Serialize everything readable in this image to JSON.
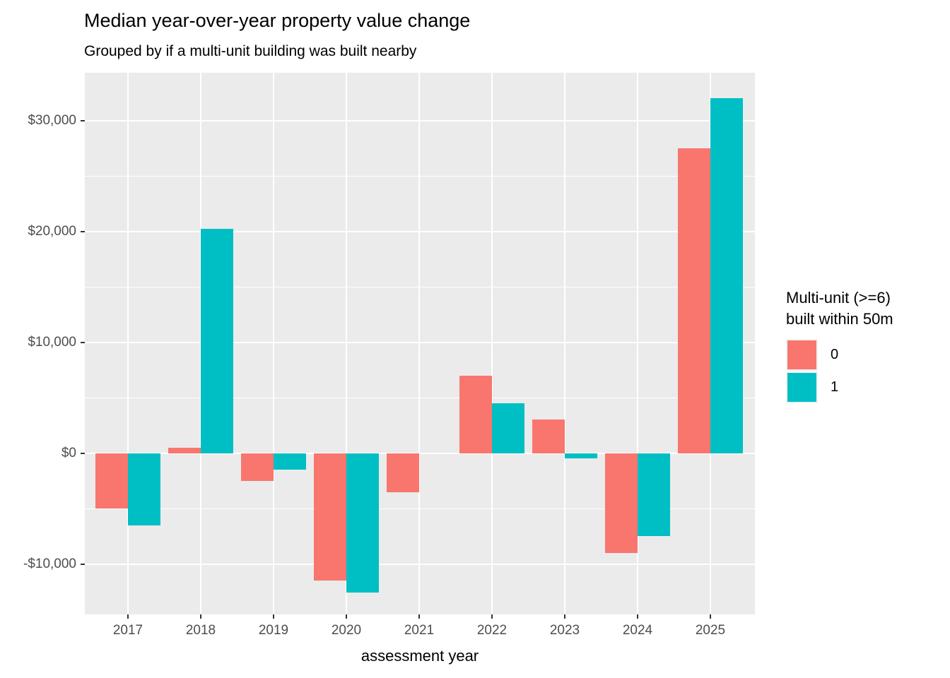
{
  "chart_data": {
    "type": "bar",
    "title": "Median year-over-year property value change",
    "subtitle": "Grouped by if a multi-unit building was built nearby",
    "xlabel": "assessment year",
    "ylabel": "",
    "categories": [
      "2017",
      "2018",
      "2019",
      "2020",
      "2021",
      "2022",
      "2023",
      "2024",
      "2025"
    ],
    "series": [
      {
        "name": "0",
        "color": "#F8766D",
        "values": [
          -5000,
          450,
          -2500,
          -11500,
          -3500,
          7000,
          3000,
          -9000,
          27500
        ]
      },
      {
        "name": "1",
        "color": "#00BFC4",
        "values": [
          -6500,
          20200,
          -1500,
          -12600,
          null,
          4500,
          -500,
          -7500,
          32000
        ]
      }
    ],
    "ylim": [
      -14550,
      34300
    ],
    "yticks_major": [
      -10000,
      0,
      10000,
      20000,
      30000
    ],
    "ytick_labels": [
      "-$10,000",
      "$0",
      "$10,000",
      "$20,000",
      "$30,000"
    ],
    "yticks_minor": [
      -5000,
      5000,
      15000,
      25000
    ],
    "grid": "white major+minor horizontal lines and major vertical lines on gray panel",
    "legend_position": "right",
    "legend": {
      "title_lines": [
        "Multi-unit (>=6)",
        "built within 50m"
      ],
      "entries": [
        {
          "label": "0",
          "color": "#F8766D"
        },
        {
          "label": "1",
          "color": "#00BFC4"
        }
      ]
    },
    "colors": {
      "panel_bg": "#EBEBEB",
      "gridline": "#FFFFFF",
      "axis_text": "#4D4D4D",
      "tick_mark": "#333333",
      "title_text": "#000000"
    }
  }
}
